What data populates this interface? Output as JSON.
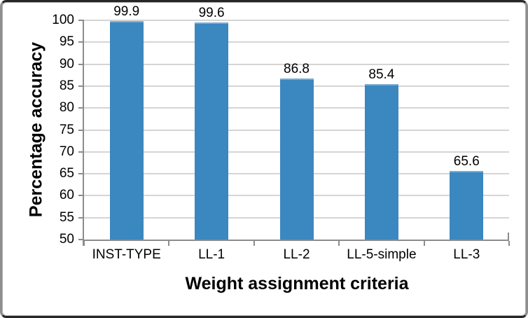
{
  "chart_data": {
    "type": "bar",
    "title": "",
    "xlabel": "Weight assignment criteria",
    "ylabel": "Percentage accuracy",
    "categories": [
      "INST-TYPE",
      "LL-1",
      "LL-2",
      "LL-5-simple",
      "LL-3"
    ],
    "values": [
      99.9,
      99.6,
      86.8,
      85.4,
      65.6
    ],
    "data_labels": [
      "99.9",
      "99.6",
      "86.8",
      "85.4",
      "65.6"
    ],
    "ylim": [
      50,
      100
    ],
    "ytick_step": 5,
    "yticks": [
      50,
      55,
      60,
      65,
      70,
      75,
      80,
      85,
      90,
      95,
      100
    ],
    "grid": "horizontal",
    "legend": "none",
    "colors": {
      "bar": "#3b87c0",
      "bar_top_edge": "#7fafd4",
      "gridline": "#d5d5d5",
      "axis": "#8c8c8c",
      "text": "#000000",
      "frame_dark": "#262626",
      "frame_gray": "#8f8f8f"
    }
  }
}
